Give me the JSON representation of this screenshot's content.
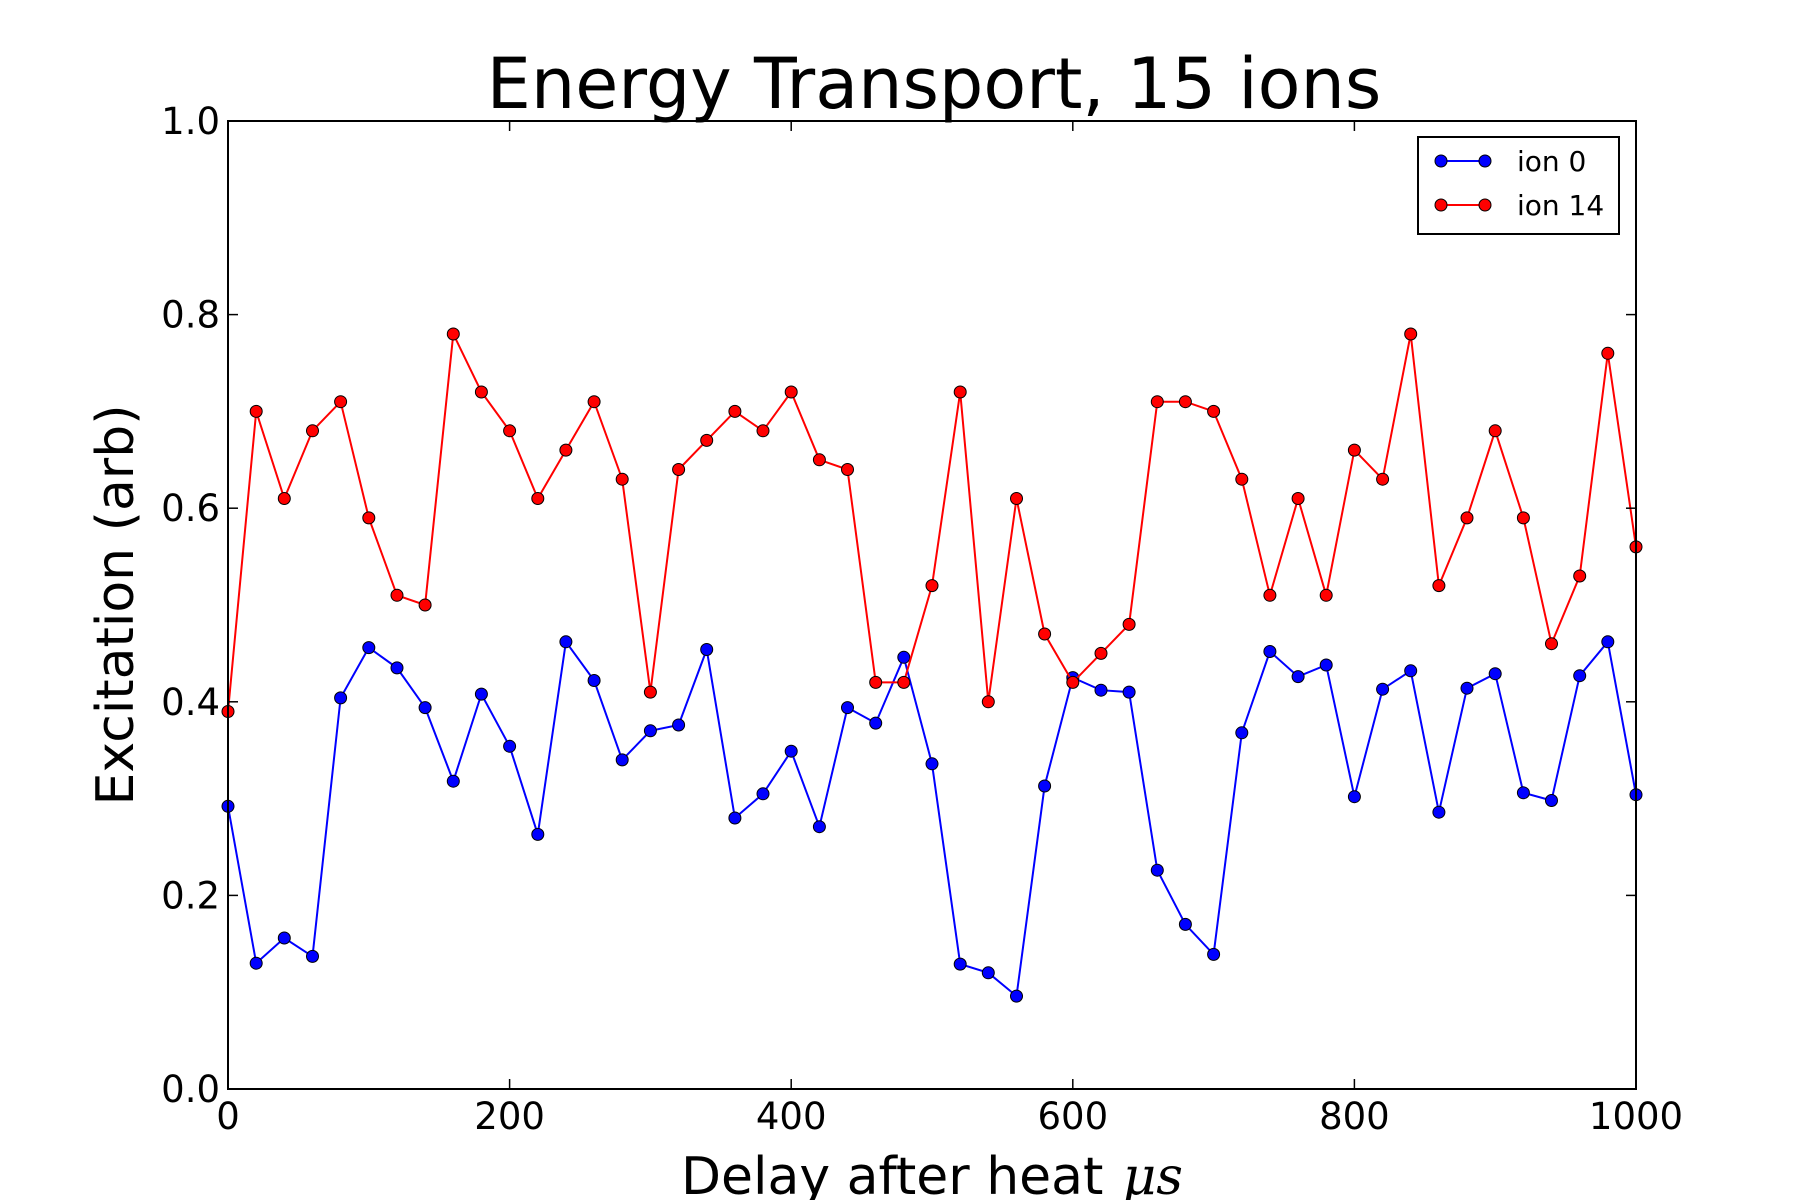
{
  "chart_data": {
    "type": "line",
    "title": "Energy Transport, 15 ions",
    "xlabel": "Delay after heat",
    "xlabel_unit": "μs",
    "ylabel": "Excitation (arb)",
    "xlim": [
      0,
      1000
    ],
    "ylim": [
      0.0,
      1.0
    ],
    "xticks": [
      "0",
      "200",
      "400",
      "600",
      "800",
      "1000"
    ],
    "yticks": [
      "0.0",
      "0.2",
      "0.4",
      "0.6",
      "0.8",
      "1.0"
    ],
    "xtick_values": [
      0,
      200,
      400,
      600,
      800,
      1000
    ],
    "ytick_values": [
      0.0,
      0.2,
      0.4,
      0.6,
      0.8,
      1.0
    ],
    "grid": false,
    "legend_position": "top-right",
    "x": [
      0,
      20,
      40,
      60,
      80,
      100,
      120,
      140,
      160,
      180,
      200,
      220,
      240,
      260,
      280,
      300,
      320,
      340,
      360,
      380,
      400,
      420,
      440,
      460,
      480,
      500,
      520,
      540,
      560,
      580,
      600,
      620,
      640,
      660,
      680,
      700,
      720,
      740,
      760,
      780,
      800,
      820,
      840,
      860,
      880,
      900,
      920,
      940,
      960,
      980,
      1000
    ],
    "series": [
      {
        "name": "ion 0",
        "color": "#0000ff",
        "values": [
          0.292,
          0.13,
          0.156,
          0.137,
          0.404,
          0.456,
          0.435,
          0.394,
          0.318,
          0.408,
          0.354,
          0.263,
          0.462,
          0.422,
          0.34,
          0.37,
          0.376,
          0.454,
          0.28,
          0.305,
          0.349,
          0.271,
          0.394,
          0.378,
          0.446,
          0.336,
          0.129,
          0.12,
          0.096,
          0.313,
          0.425,
          0.412,
          0.41,
          0.226,
          0.17,
          0.139,
          0.368,
          0.452,
          0.426,
          0.438,
          0.302,
          0.413,
          0.432,
          0.286,
          0.414,
          0.429,
          0.306,
          0.298,
          0.427,
          0.462,
          0.304
        ]
      },
      {
        "name": "ion 14",
        "color": "#ff0000",
        "values": [
          0.39,
          0.7,
          0.61,
          0.68,
          0.71,
          0.59,
          0.51,
          0.5,
          0.78,
          0.72,
          0.68,
          0.61,
          0.66,
          0.71,
          0.63,
          0.41,
          0.64,
          0.67,
          0.7,
          0.68,
          0.72,
          0.65,
          0.64,
          0.42,
          0.42,
          0.52,
          0.72,
          0.4,
          0.61,
          0.47,
          0.42,
          0.45,
          0.48,
          0.71,
          0.71,
          0.7,
          0.63,
          0.51,
          0.61,
          0.51,
          0.66,
          0.63,
          0.78,
          0.52,
          0.59,
          0.68,
          0.59,
          0.46,
          0.53,
          0.76,
          0.56
        ]
      }
    ]
  }
}
